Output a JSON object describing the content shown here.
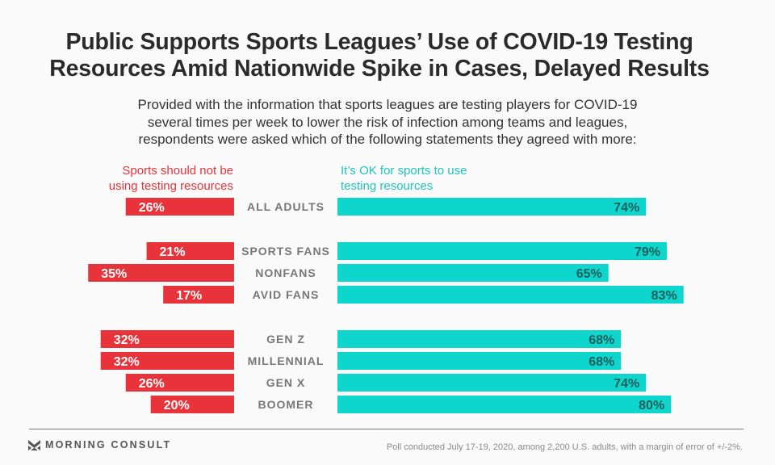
{
  "header": {
    "title_line1": "Public Supports Sports Leagues’ Use of COVID-19 Testing",
    "title_line2": "Resources Amid Nationwide Spike in Cases, Delayed Results",
    "subtitle_line1": "Provided with the information that sports leagues are testing players for COVID-19",
    "subtitle_line2": "several times per week to lower the risk of infection among teams and leagues,",
    "subtitle_line3": "respondents were asked which of the following statements they agreed with more:"
  },
  "colors": {
    "negative": "#e8333a",
    "positive": "#0ed6cc",
    "negative_label": "#ffffff",
    "positive_label": "#1b5e5c",
    "category_label": "#777777"
  },
  "chart_data": {
    "type": "bar",
    "orientation": "horizontal-diverging",
    "title": "Public Supports Sports Leagues’ Use of COVID-19 Testing Resources Amid Nationwide Spike in Cases, Delayed Results",
    "xlabel": "",
    "ylabel": "",
    "unit": "%",
    "groups": [
      [
        "ALL ADULTS"
      ],
      [
        "SPORTS FANS",
        "NONFANS",
        "AVID FANS"
      ],
      [
        "GEN Z",
        "MILLENNIAL",
        "GEN X",
        "BOOMER"
      ]
    ],
    "categories": [
      "ALL ADULTS",
      "SPORTS FANS",
      "NONFANS",
      "AVID FANS",
      "GEN Z",
      "MILLENNIAL",
      "GEN X",
      "BOOMER"
    ],
    "series": [
      {
        "name": "Sports should not be using testing resources",
        "side": "left",
        "values": [
          26,
          21,
          35,
          17,
          32,
          32,
          26,
          20
        ]
      },
      {
        "name": "It’s OK for sports to use testing resources",
        "side": "right",
        "values": [
          74,
          79,
          65,
          83,
          68,
          68,
          74,
          80
        ]
      }
    ],
    "legend": {
      "left_line1": "Sports should not be",
      "left_line2": "using testing resources",
      "right_line1": "It’s OK for sports to use",
      "right_line2": "testing resources"
    }
  },
  "footer": {
    "brand": "MORNING CONSULT",
    "note": "Poll conducted July 17-19, 2020, among 2,200 U.S. adults, with a margin of error of +/-2%."
  }
}
